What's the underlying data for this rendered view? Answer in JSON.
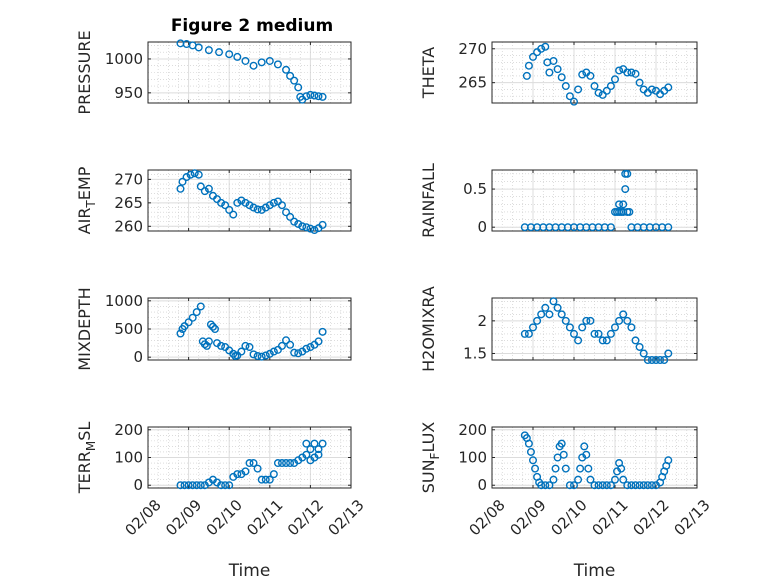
{
  "figure_title": "Figure 2 medium",
  "colors": {
    "marker": "#0072BD",
    "axis": "#262626",
    "grid": "#c8c8c8"
  },
  "chart_data": [
    {
      "type": "scatter",
      "ylabel": "PRESSURE",
      "ylabel_sub": "",
      "ylabel_tail": "",
      "ylim": [
        935,
        1025
      ],
      "yticks": [
        950,
        1000
      ],
      "ytick_labels": [
        "950",
        "1000"
      ],
      "xlim": [
        0,
        5
      ],
      "xticks": [
        0,
        1,
        2,
        3,
        4,
        5
      ],
      "xtick_labels": [
        "02/08",
        "02/09",
        "02/10",
        "02/11",
        "02/12",
        "02/13"
      ],
      "show_xticklabels": false,
      "xlabel": "",
      "x": [
        0.8,
        0.95,
        1.1,
        1.25,
        1.5,
        1.75,
        2.0,
        2.2,
        2.4,
        2.6,
        2.8,
        3.0,
        3.2,
        3.4,
        3.5,
        3.6,
        3.7,
        3.75,
        3.8,
        3.9,
        4.0,
        4.1,
        4.2,
        4.3
      ],
      "y": [
        1023,
        1022,
        1020,
        1017,
        1013,
        1010,
        1007,
        1003,
        997,
        990,
        995,
        997,
        992,
        984,
        975,
        968,
        958,
        944,
        940,
        945,
        947,
        946,
        945,
        944
      ]
    },
    {
      "type": "scatter",
      "ylabel": "THETA",
      "ylabel_sub": "",
      "ylabel_tail": "",
      "ylim": [
        262,
        271
      ],
      "yticks": [
        265,
        270
      ],
      "ytick_labels": [
        "265",
        "270"
      ],
      "xlim": [
        0,
        5
      ],
      "xticks": [
        0,
        1,
        2,
        3,
        4,
        5
      ],
      "xtick_labels": [
        "02/08",
        "02/09",
        "02/10",
        "02/11",
        "02/12",
        "02/13"
      ],
      "show_xticklabels": false,
      "xlabel": "",
      "x": [
        0.85,
        0.9,
        1.0,
        1.1,
        1.2,
        1.3,
        1.35,
        1.4,
        1.5,
        1.6,
        1.7,
        1.8,
        1.9,
        2.0,
        2.1,
        2.2,
        2.3,
        2.4,
        2.5,
        2.6,
        2.7,
        2.8,
        2.9,
        3.0,
        3.1,
        3.2,
        3.3,
        3.4,
        3.5,
        3.6,
        3.7,
        3.8,
        3.9,
        4.0,
        4.1,
        4.2,
        4.3
      ],
      "y": [
        266.0,
        267.5,
        268.8,
        269.5,
        270.0,
        270.3,
        268.0,
        266.5,
        268.2,
        267.0,
        265.8,
        264.5,
        263.0,
        262.2,
        264.0,
        266.2,
        266.5,
        266.0,
        264.5,
        263.5,
        263.2,
        263.8,
        264.5,
        265.5,
        266.8,
        267.0,
        266.5,
        266.5,
        266.3,
        265.0,
        264.0,
        263.5,
        264.0,
        263.8,
        263.3,
        263.8,
        264.3
      ]
    },
    {
      "type": "scatter",
      "ylabel": "AIR",
      "ylabel_sub": "T",
      "ylabel_tail": "EMP",
      "ylim": [
        259,
        272
      ],
      "yticks": [
        260,
        265,
        270
      ],
      "ytick_labels": [
        "260",
        "265",
        "270"
      ],
      "xlim": [
        0,
        5
      ],
      "xticks": [
        0,
        1,
        2,
        3,
        4,
        5
      ],
      "xtick_labels": [
        "02/08",
        "02/09",
        "02/10",
        "02/11",
        "02/12",
        "02/13"
      ],
      "show_xticklabels": false,
      "xlabel": "",
      "x": [
        0.8,
        0.85,
        0.95,
        1.05,
        1.15,
        1.25,
        1.3,
        1.4,
        1.5,
        1.6,
        1.7,
        1.8,
        1.9,
        2.0,
        2.1,
        2.2,
        2.3,
        2.4,
        2.5,
        2.6,
        2.7,
        2.8,
        2.9,
        3.0,
        3.1,
        3.2,
        3.3,
        3.4,
        3.5,
        3.6,
        3.7,
        3.8,
        3.9,
        4.0,
        4.1,
        4.2,
        4.3
      ],
      "y": [
        268.0,
        269.5,
        270.5,
        271.0,
        271.3,
        271.0,
        268.5,
        267.5,
        268.0,
        266.5,
        265.8,
        265.0,
        264.5,
        263.5,
        262.5,
        265.0,
        265.5,
        265.0,
        264.5,
        264.0,
        263.6,
        263.5,
        264.0,
        264.5,
        265.0,
        265.3,
        264.5,
        263.0,
        262.0,
        261.0,
        260.5,
        260.0,
        259.8,
        259.5,
        259.2,
        259.6,
        260.3
      ]
    },
    {
      "type": "scatter",
      "ylabel": "RAINFALL",
      "ylabel_sub": "",
      "ylabel_tail": "",
      "ylim": [
        -0.05,
        0.75
      ],
      "yticks": [
        0,
        0.5
      ],
      "ytick_labels": [
        "0",
        "0.5"
      ],
      "xlim": [
        0,
        5
      ],
      "xticks": [
        0,
        1,
        2,
        3,
        4,
        5
      ],
      "xtick_labels": [
        "02/08",
        "02/09",
        "02/10",
        "02/11",
        "02/12",
        "02/13"
      ],
      "show_xticklabels": false,
      "xlabel": "",
      "x": [
        0.8,
        0.95,
        1.1,
        1.25,
        1.4,
        1.55,
        1.7,
        1.85,
        2.0,
        2.15,
        2.3,
        2.45,
        2.6,
        2.75,
        2.9,
        3.0,
        3.05,
        3.1,
        3.1,
        3.15,
        3.2,
        3.2,
        3.25,
        3.25,
        3.3,
        3.3,
        3.35,
        3.4,
        3.55,
        3.7,
        3.85,
        4.0,
        4.15,
        4.3
      ],
      "y": [
        0,
        0,
        0,
        0,
        0,
        0,
        0,
        0,
        0,
        0,
        0,
        0,
        0,
        0,
        0,
        0.2,
        0.2,
        0.2,
        0.3,
        0.2,
        0.3,
        0.2,
        0.5,
        0.7,
        0.2,
        0.7,
        0.2,
        0,
        0,
        0,
        0,
        0,
        0,
        0
      ]
    },
    {
      "type": "scatter",
      "ylabel": "MIXDEPTH",
      "ylabel_sub": "",
      "ylabel_tail": "",
      "ylim": [
        -50,
        1050
      ],
      "yticks": [
        0,
        500,
        1000
      ],
      "ytick_labels": [
        "0",
        "500",
        "1000"
      ],
      "xlim": [
        0,
        5
      ],
      "xticks": [
        0,
        1,
        2,
        3,
        4,
        5
      ],
      "xtick_labels": [
        "02/08",
        "02/09",
        "02/10",
        "02/11",
        "02/12",
        "02/13"
      ],
      "show_xticklabels": false,
      "xlabel": "",
      "x": [
        0.8,
        0.85,
        0.9,
        1.0,
        1.1,
        1.2,
        1.3,
        1.35,
        1.4,
        1.45,
        1.5,
        1.55,
        1.6,
        1.65,
        1.7,
        1.8,
        1.9,
        2.0,
        2.1,
        2.15,
        2.2,
        2.3,
        2.4,
        2.5,
        2.6,
        2.7,
        2.8,
        2.9,
        3.0,
        3.1,
        3.2,
        3.3,
        3.4,
        3.5,
        3.6,
        3.7,
        3.8,
        3.9,
        4.0,
        4.1,
        4.2,
        4.3
      ],
      "y": [
        420,
        500,
        550,
        620,
        700,
        800,
        900,
        280,
        230,
        200,
        280,
        580,
        540,
        500,
        250,
        200,
        180,
        120,
        60,
        20,
        30,
        100,
        200,
        180,
        50,
        20,
        10,
        30,
        60,
        100,
        130,
        200,
        300,
        220,
        80,
        70,
        100,
        150,
        180,
        220,
        280,
        450
      ]
    },
    {
      "type": "scatter",
      "ylabel": "H2OMIXRA",
      "ylabel_sub": "",
      "ylabel_tail": "",
      "ylim": [
        1.4,
        2.35
      ],
      "yticks": [
        1.5,
        2
      ],
      "ytick_labels": [
        "1.5",
        "2"
      ],
      "xlim": [
        0,
        5
      ],
      "xticks": [
        0,
        1,
        2,
        3,
        4,
        5
      ],
      "xtick_labels": [
        "02/08",
        "02/09",
        "02/10",
        "02/11",
        "02/12",
        "02/13"
      ],
      "show_xticklabels": false,
      "xlabel": "",
      "x": [
        0.8,
        0.9,
        1.0,
        1.1,
        1.2,
        1.3,
        1.4,
        1.5,
        1.6,
        1.7,
        1.8,
        1.9,
        2.0,
        2.1,
        2.2,
        2.3,
        2.4,
        2.5,
        2.6,
        2.7,
        2.8,
        2.9,
        3.0,
        3.1,
        3.2,
        3.3,
        3.4,
        3.5,
        3.6,
        3.7,
        3.8,
        3.9,
        4.0,
        4.1,
        4.2,
        4.3
      ],
      "y": [
        1.8,
        1.8,
        1.9,
        2.0,
        2.1,
        2.2,
        2.1,
        2.3,
        2.2,
        2.1,
        2.0,
        1.9,
        1.8,
        1.7,
        1.9,
        2.0,
        2.0,
        1.8,
        1.8,
        1.7,
        1.7,
        1.8,
        1.9,
        2.0,
        2.1,
        2.0,
        1.9,
        1.7,
        1.6,
        1.5,
        1.4,
        1.4,
        1.4,
        1.4,
        1.4,
        1.5
      ]
    },
    {
      "type": "scatter",
      "ylabel": "TERR",
      "ylabel_sub": "M",
      "ylabel_tail": "SL",
      "ylim": [
        -10,
        210
      ],
      "yticks": [
        0,
        100,
        200
      ],
      "ytick_labels": [
        "0",
        "100",
        "200"
      ],
      "xlim": [
        0,
        5
      ],
      "xticks": [
        0,
        1,
        2,
        3,
        4,
        5
      ],
      "xtick_labels": [
        "02/08",
        "02/09",
        "02/10",
        "02/11",
        "02/12",
        "02/13"
      ],
      "show_xticklabels": true,
      "xlabel": "Time",
      "x": [
        0.8,
        0.9,
        1.0,
        1.1,
        1.2,
        1.3,
        1.4,
        1.5,
        1.6,
        1.7,
        1.8,
        1.9,
        2.0,
        2.1,
        2.2,
        2.3,
        2.4,
        2.5,
        2.6,
        2.7,
        2.8,
        2.9,
        3.0,
        3.1,
        3.2,
        3.3,
        3.4,
        3.5,
        3.6,
        3.7,
        3.8,
        3.9,
        3.9,
        4.0,
        4.0,
        4.1,
        4.1,
        4.2,
        4.2,
        4.3
      ],
      "y": [
        0,
        0,
        0,
        0,
        0,
        0,
        0,
        10,
        20,
        10,
        0,
        0,
        0,
        30,
        40,
        40,
        50,
        80,
        80,
        60,
        20,
        20,
        20,
        40,
        80,
        80,
        80,
        80,
        80,
        90,
        100,
        150,
        110,
        130,
        90,
        100,
        150,
        130,
        110,
        150
      ]
    },
    {
      "type": "scatter",
      "ylabel": "SUN",
      "ylabel_sub": "F",
      "ylabel_tail": "LUX",
      "ylim": [
        -10,
        210
      ],
      "yticks": [
        0,
        100,
        200
      ],
      "ytick_labels": [
        "0",
        "100",
        "200"
      ],
      "xlim": [
        0,
        5
      ],
      "xticks": [
        0,
        1,
        2,
        3,
        4,
        5
      ],
      "xtick_labels": [
        "02/08",
        "02/09",
        "02/10",
        "02/11",
        "02/12",
        "02/13"
      ],
      "show_xticklabels": true,
      "xlabel": "Time",
      "x": [
        0.8,
        0.85,
        0.9,
        0.95,
        1.0,
        1.05,
        1.1,
        1.15,
        1.2,
        1.3,
        1.4,
        1.5,
        1.55,
        1.6,
        1.65,
        1.7,
        1.75,
        1.8,
        1.9,
        2.0,
        2.1,
        2.15,
        2.2,
        2.25,
        2.3,
        2.35,
        2.4,
        2.5,
        2.6,
        2.7,
        2.8,
        2.9,
        3.0,
        3.05,
        3.1,
        3.15,
        3.2,
        3.3,
        3.4,
        3.5,
        3.6,
        3.7,
        3.8,
        3.9,
        4.0,
        4.1,
        4.15,
        4.2,
        4.25,
        4.3
      ],
      "y": [
        180,
        170,
        150,
        120,
        90,
        60,
        30,
        10,
        0,
        0,
        0,
        20,
        60,
        100,
        140,
        150,
        110,
        60,
        0,
        0,
        20,
        60,
        100,
        140,
        110,
        60,
        20,
        0,
        0,
        0,
        0,
        0,
        20,
        50,
        80,
        60,
        20,
        0,
        0,
        0,
        0,
        0,
        0,
        0,
        0,
        10,
        30,
        50,
        70,
        90
      ]
    }
  ]
}
